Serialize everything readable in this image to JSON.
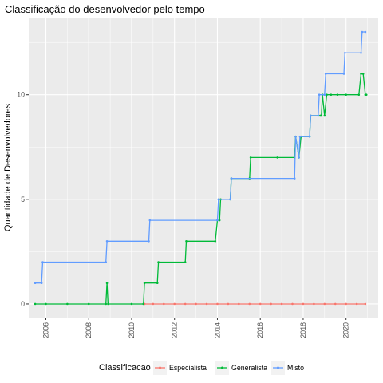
{
  "chart_data": {
    "type": "line",
    "title": "Classificação do desenvolvedor pelo tempo",
    "xlabel": "",
    "ylabel": "Quantidade de Desenvolvedores",
    "xlim": [
      2005.2,
      2021.5
    ],
    "ylim": [
      -0.65,
      13.65
    ],
    "x_ticks": [
      {
        "value": 2006,
        "label": "2006"
      },
      {
        "value": 2008,
        "label": "2008"
      },
      {
        "value": 2010,
        "label": "2010"
      },
      {
        "value": 2012,
        "label": "2012"
      },
      {
        "value": 2014,
        "label": "2014"
      },
      {
        "value": 2016,
        "label": "2016"
      },
      {
        "value": 2018,
        "label": "2018"
      },
      {
        "value": 2020,
        "label": "2020"
      }
    ],
    "y_ticks": [
      {
        "value": 0,
        "label": "0"
      },
      {
        "value": 5,
        "label": "5"
      },
      {
        "value": 10,
        "label": "10"
      }
    ],
    "grid": true,
    "legend": {
      "title": "Classificacao",
      "position": "bottom"
    },
    "series": [
      {
        "name": "Especialista",
        "color": "#F8766D",
        "points": [
          [
            2010.6,
            0
          ],
          [
            2011.0,
            0
          ],
          [
            2011.5,
            0
          ],
          [
            2012.0,
            0
          ],
          [
            2012.5,
            0
          ],
          [
            2013.0,
            0
          ],
          [
            2013.5,
            0
          ],
          [
            2014.0,
            0
          ],
          [
            2014.5,
            0
          ],
          [
            2015.0,
            0
          ],
          [
            2015.5,
            0
          ],
          [
            2016.0,
            0
          ],
          [
            2016.5,
            0
          ],
          [
            2017.0,
            0
          ],
          [
            2017.5,
            0
          ],
          [
            2018.0,
            0
          ],
          [
            2018.5,
            0
          ],
          [
            2019.0,
            0
          ],
          [
            2019.5,
            0
          ],
          [
            2020.0,
            0
          ],
          [
            2020.5,
            0
          ],
          [
            2020.9,
            0
          ]
        ]
      },
      {
        "name": "Generalista",
        "color": "#00BA38",
        "points": [
          [
            2005.5,
            0
          ],
          [
            2006.0,
            0
          ],
          [
            2007.0,
            0
          ],
          [
            2008.0,
            0
          ],
          [
            2008.8,
            0
          ],
          [
            2008.85,
            1
          ],
          [
            2008.9,
            0
          ],
          [
            2010.0,
            0
          ],
          [
            2010.55,
            0
          ],
          [
            2010.6,
            1
          ],
          [
            2011.2,
            1
          ],
          [
            2011.25,
            2
          ],
          [
            2012.5,
            2
          ],
          [
            2012.55,
            3
          ],
          [
            2013.9,
            3
          ],
          [
            2014.0,
            4
          ],
          [
            2014.1,
            4
          ],
          [
            2014.15,
            5
          ],
          [
            2014.6,
            5
          ],
          [
            2014.65,
            6
          ],
          [
            2015.5,
            6
          ],
          [
            2015.55,
            7
          ],
          [
            2016.8,
            7
          ],
          [
            2017.6,
            7
          ],
          [
            2017.65,
            8
          ],
          [
            2017.8,
            7
          ],
          [
            2017.9,
            8
          ],
          [
            2018.3,
            8
          ],
          [
            2018.35,
            9
          ],
          [
            2018.8,
            9
          ],
          [
            2018.85,
            9
          ],
          [
            2018.9,
            10
          ],
          [
            2019.0,
            9
          ],
          [
            2019.1,
            10
          ],
          [
            2019.3,
            10
          ],
          [
            2019.6,
            10
          ],
          [
            2020.0,
            10
          ],
          [
            2020.6,
            10
          ],
          [
            2020.7,
            11
          ],
          [
            2020.8,
            11
          ],
          [
            2020.9,
            10
          ],
          [
            2020.95,
            10
          ]
        ]
      },
      {
        "name": "Misto",
        "color": "#619CFF",
        "points": [
          [
            2005.5,
            1
          ],
          [
            2005.8,
            1
          ],
          [
            2005.85,
            2
          ],
          [
            2008.8,
            2
          ],
          [
            2008.85,
            3
          ],
          [
            2010.8,
            3
          ],
          [
            2010.85,
            4
          ],
          [
            2014.0,
            4
          ],
          [
            2014.05,
            5
          ],
          [
            2014.6,
            5
          ],
          [
            2014.65,
            6
          ],
          [
            2017.6,
            6
          ],
          [
            2017.65,
            8
          ],
          [
            2017.8,
            7
          ],
          [
            2017.85,
            8
          ],
          [
            2018.3,
            8
          ],
          [
            2018.35,
            9
          ],
          [
            2018.7,
            9
          ],
          [
            2018.75,
            10
          ],
          [
            2019.0,
            10
          ],
          [
            2019.05,
            11
          ],
          [
            2019.9,
            11
          ],
          [
            2019.95,
            12
          ],
          [
            2020.7,
            12
          ],
          [
            2020.75,
            13
          ],
          [
            2020.9,
            13
          ]
        ]
      }
    ]
  }
}
